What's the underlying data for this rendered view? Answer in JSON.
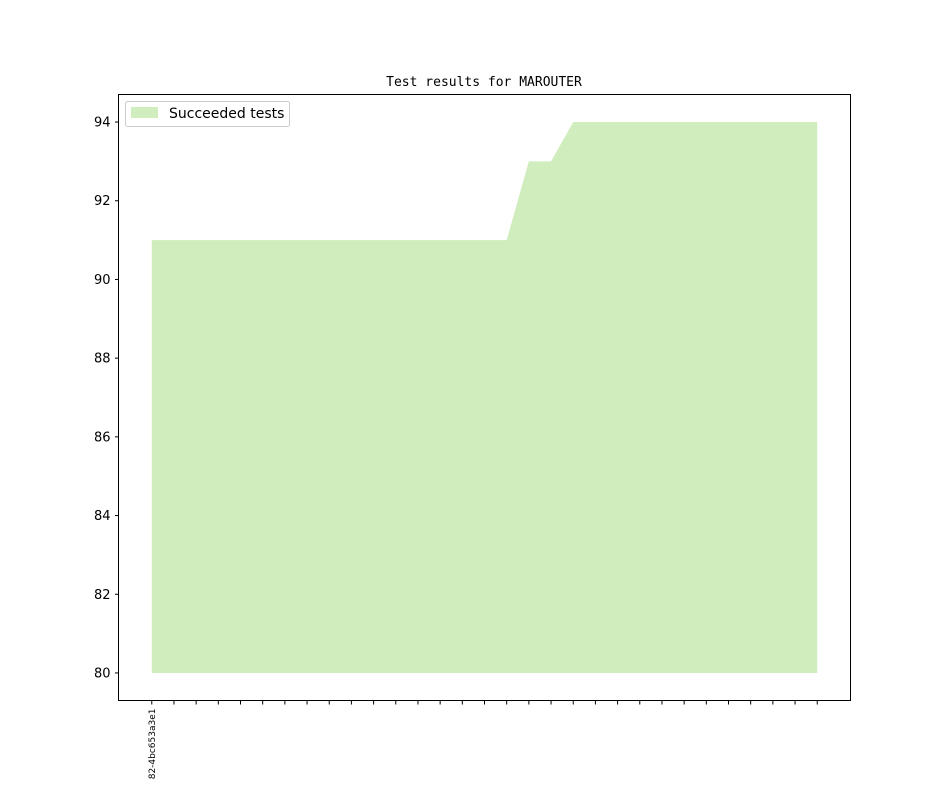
{
  "chart_data": {
    "type": "area",
    "title": "Test results for MAROUTER",
    "xlabel": "",
    "ylabel": "",
    "x_tick_labels": [
      "82-4bc653a3e1"
    ],
    "x": [
      0,
      1,
      2,
      3,
      4,
      5,
      6,
      7,
      8,
      9,
      10,
      11,
      12,
      13,
      14,
      15,
      16,
      17,
      18,
      19,
      20,
      21,
      22,
      23,
      24,
      25,
      26,
      27,
      28,
      29,
      30
    ],
    "series": [
      {
        "name": "Succeeded tests",
        "color": "#cfedbd",
        "baseline": 80,
        "values": [
          91,
          91,
          91,
          91,
          91,
          91,
          91,
          91,
          91,
          91,
          91,
          91,
          91,
          91,
          91,
          91,
          91,
          93,
          93,
          94,
          94,
          94,
          94,
          94,
          94,
          94,
          94,
          94,
          94,
          94,
          94
        ]
      }
    ],
    "xlim": [
      -1.5,
      31.5
    ],
    "ylim": [
      79.3,
      94.7
    ],
    "yticks": [
      80,
      82,
      84,
      86,
      88,
      90,
      92,
      94
    ],
    "grid": false,
    "legend_position": "top-left"
  }
}
